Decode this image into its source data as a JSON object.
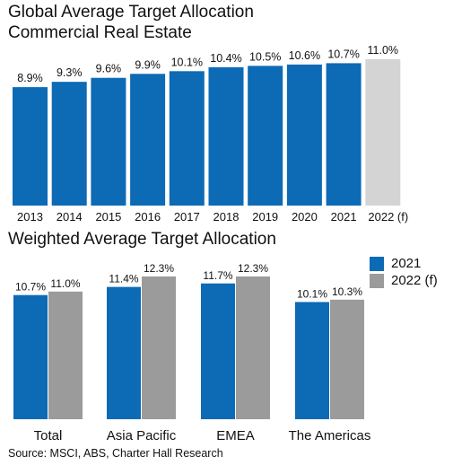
{
  "titles": {
    "chart1_line1": "Global Average Target Allocation",
    "chart1_line2": "Commercial Real Estate",
    "chart2": "Weighted Average Target Allocation"
  },
  "source": "Source: MSCI, ABS, Charter Hall Research",
  "colors": {
    "actual": "#0d6ab5",
    "forecast_light": "#d4d4d4",
    "forecast": "#9b9b9b"
  },
  "legend": {
    "actual": "2021",
    "forecast": "2022 (f)"
  },
  "chart_data": [
    {
      "type": "bar",
      "title": "Global Average Target Allocation Commercial Real Estate",
      "categories": [
        "2013",
        "2014",
        "2015",
        "2016",
        "2017",
        "2018",
        "2019",
        "2020",
        "2021",
        "2022 (f)"
      ],
      "values": [
        8.9,
        9.3,
        9.6,
        9.9,
        10.1,
        10.4,
        10.5,
        10.6,
        10.7,
        11.0
      ],
      "labels": [
        "8.9%",
        "9.3%",
        "9.6%",
        "9.9%",
        "10.1%",
        "10.4%",
        "10.5%",
        "10.6%",
        "10.7%",
        "11.0%"
      ],
      "forecast_index": 9,
      "ylim": [
        0,
        11.2
      ],
      "grid": false
    },
    {
      "type": "bar",
      "title": "Weighted Average Target Allocation",
      "categories": [
        "Total",
        "Asia Pacific",
        "EMEA",
        "The Americas"
      ],
      "series": [
        {
          "name": "2021",
          "values": [
            10.7,
            11.4,
            11.7,
            10.1
          ],
          "labels": [
            "10.7%",
            "11.4%",
            "11.7%",
            "10.1%"
          ]
        },
        {
          "name": "2022 (f)",
          "values": [
            11.0,
            12.3,
            12.3,
            10.3
          ],
          "labels": [
            "11.0%",
            "12.3%",
            "12.3%",
            "10.3%"
          ]
        }
      ],
      "ylim": [
        0,
        12.3
      ],
      "legend_position": "top-right",
      "grid": false
    }
  ]
}
